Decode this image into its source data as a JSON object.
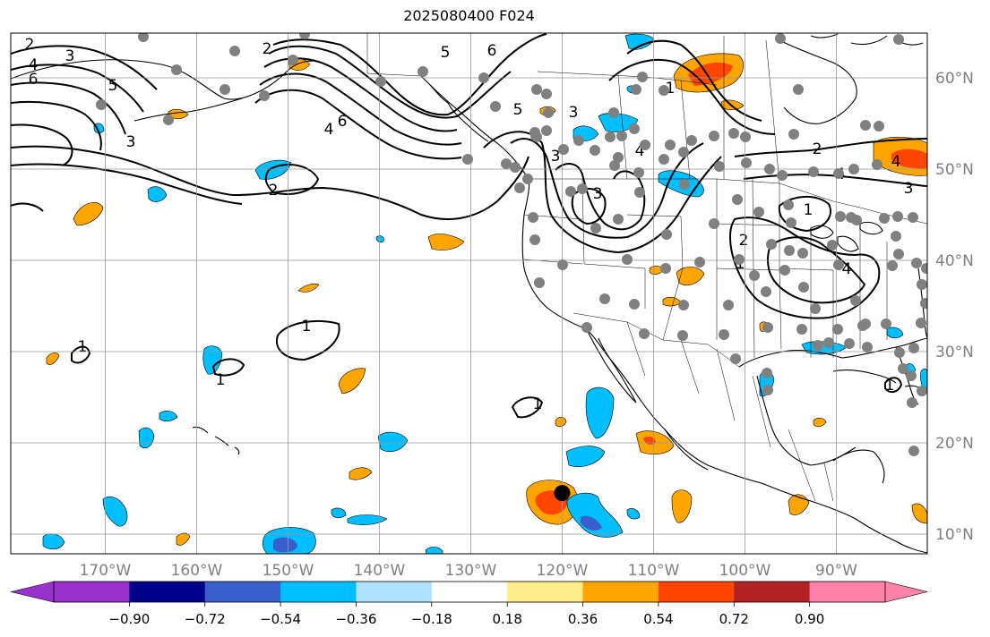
{
  "title": "2025080400 F024",
  "map": {
    "lon_ticks": [
      "170°W",
      "160°W",
      "150°W",
      "140°W",
      "130°W",
      "120°W",
      "110°W",
      "100°W",
      "90°W"
    ],
    "lat_ticks": [
      "10°N",
      "20°N",
      "30°N",
      "40°N",
      "50°N",
      "60°N"
    ],
    "grid": true,
    "marker": {
      "lat": 14.5,
      "lon": -120.0,
      "color": "#000000"
    },
    "station_color": "#808080",
    "contour_labels": [
      "2",
      "3",
      "4",
      "6",
      "5",
      "3",
      "2",
      "5",
      "6",
      "6",
      "4",
      "2",
      "1",
      "1",
      "1",
      "5",
      "3",
      "3",
      "4",
      "3",
      "2",
      "1",
      "4",
      "3",
      "1",
      "2",
      "1",
      "4",
      "4",
      "1",
      "1"
    ]
  },
  "colorbar": {
    "ticks": [
      "−0.90",
      "−0.72",
      "−0.54",
      "−0.36",
      "−0.18",
      "0.18",
      "0.36",
      "0.54",
      "0.72",
      "0.90"
    ],
    "colors": [
      "#9932cc",
      "#00008b",
      "#3a5fcd",
      "#00bfff",
      "#b0e2ff",
      "#ffffff",
      "#ffec8b",
      "#ffa500",
      "#ff4500",
      "#b22222",
      "#ff82ab"
    ]
  }
}
